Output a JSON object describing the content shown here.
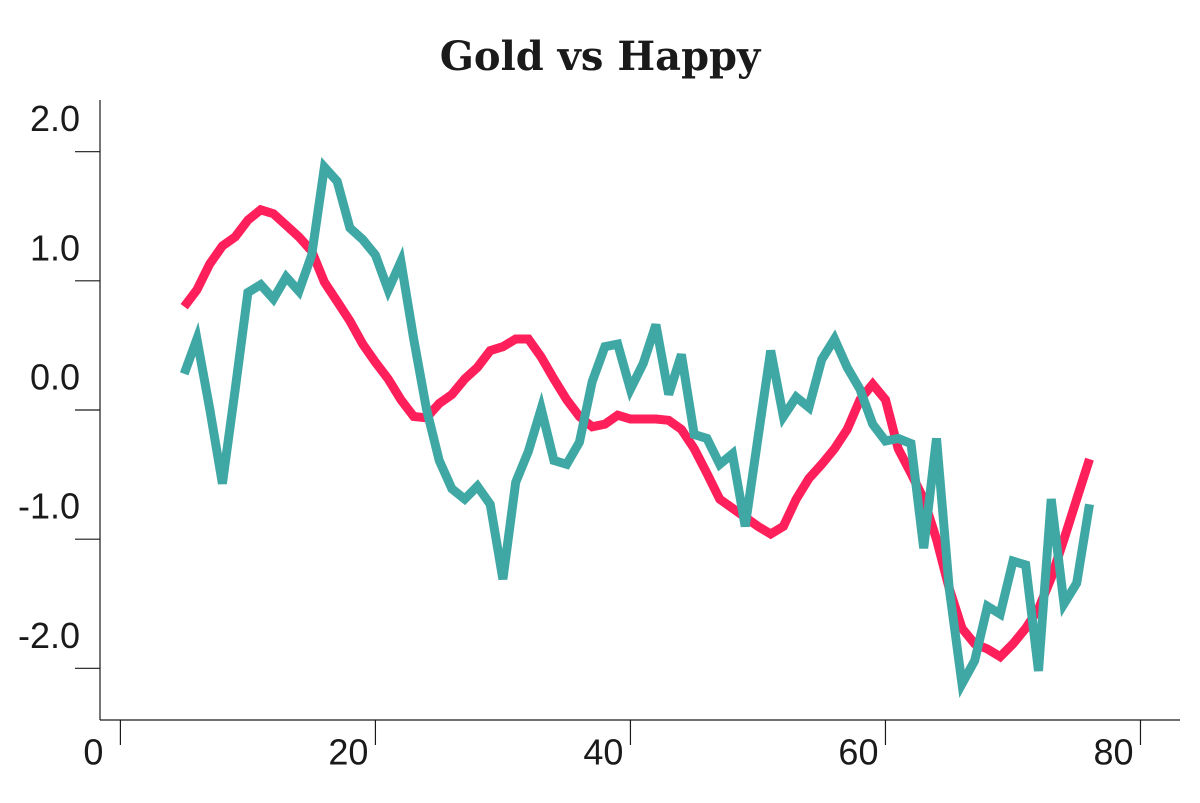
{
  "chart_data": {
    "type": "line",
    "title": "Gold vs Happy",
    "x": [
      5,
      6,
      7,
      8,
      9,
      10,
      11,
      12,
      13,
      14,
      15,
      16,
      17,
      18,
      19,
      20,
      21,
      22,
      23,
      24,
      25,
      26,
      27,
      28,
      29,
      30,
      31,
      32,
      33,
      34,
      35,
      36,
      37,
      38,
      39,
      40,
      41,
      42,
      43,
      44,
      45,
      46,
      47,
      48,
      49,
      50,
      51,
      52,
      53,
      54,
      55,
      56,
      57,
      58,
      59,
      60,
      61,
      62,
      63,
      64,
      65,
      66,
      67,
      68,
      69,
      70,
      71,
      72,
      73,
      74,
      75,
      76
    ],
    "series": [
      {
        "color": "#ff1f5a",
        "values": [
          0.8,
          0.93,
          1.13,
          1.27,
          1.34,
          1.47,
          1.55,
          1.52,
          1.43,
          1.34,
          1.23,
          0.99,
          0.84,
          0.69,
          0.51,
          0.37,
          0.24,
          0.08,
          -0.05,
          -0.06,
          0.05,
          0.12,
          0.24,
          0.33,
          0.46,
          0.49,
          0.55,
          0.55,
          0.41,
          0.24,
          0.08,
          -0.05,
          -0.13,
          -0.11,
          -0.04,
          -0.07,
          -0.07,
          -0.07,
          -0.08,
          -0.15,
          -0.3,
          -0.49,
          -0.69,
          -0.76,
          -0.83,
          -0.9,
          -0.96,
          -0.9,
          -0.69,
          -0.53,
          -0.42,
          -0.3,
          -0.15,
          0.08,
          0.2,
          0.08,
          -0.3,
          -0.49,
          -0.69,
          -1.0,
          -1.38,
          -1.69,
          -1.81,
          -1.85,
          -1.91,
          -1.81,
          -1.69,
          -1.54,
          -1.3,
          -1.0,
          -0.69,
          -0.38
        ]
      },
      {
        "color": "#40a8a4",
        "values": [
          0.28,
          0.55,
          0.01,
          -0.57,
          0.16,
          0.91,
          0.97,
          0.86,
          1.03,
          0.92,
          1.2,
          1.88,
          1.77,
          1.41,
          1.32,
          1.2,
          0.93,
          1.15,
          0.55,
          0.01,
          -0.39,
          -0.61,
          -0.69,
          -0.59,
          -0.73,
          -1.31,
          -0.56,
          -0.32,
          0.01,
          -0.39,
          -0.42,
          -0.25,
          0.22,
          0.49,
          0.51,
          0.16,
          0.36,
          0.66,
          0.12,
          0.43,
          -0.19,
          -0.22,
          -0.42,
          -0.34,
          -0.9,
          -0.22,
          0.46,
          -0.05,
          0.1,
          0.02,
          0.39,
          0.55,
          0.33,
          0.16,
          -0.11,
          -0.24,
          -0.22,
          -0.26,
          -1.07,
          -0.22,
          -1.38,
          -2.12,
          -1.94,
          -1.52,
          -1.58,
          -1.17,
          -1.2,
          -2.02,
          -0.69,
          -1.5,
          -1.34,
          -0.73
        ]
      }
    ],
    "xlim": [
      -1.6,
      83.1
    ],
    "xticks": [
      0,
      20,
      40,
      60,
      80
    ],
    "ylim": [
      -2.4,
      2.4
    ],
    "yticks": [
      {
        "value": -2,
        "label": "-2.0"
      },
      {
        "value": -1,
        "label": "-1.0"
      },
      {
        "value": 0,
        "label": "0.0"
      },
      {
        "value": 1,
        "label": "1.0"
      },
      {
        "value": 2,
        "label": "2.0"
      }
    ]
  }
}
